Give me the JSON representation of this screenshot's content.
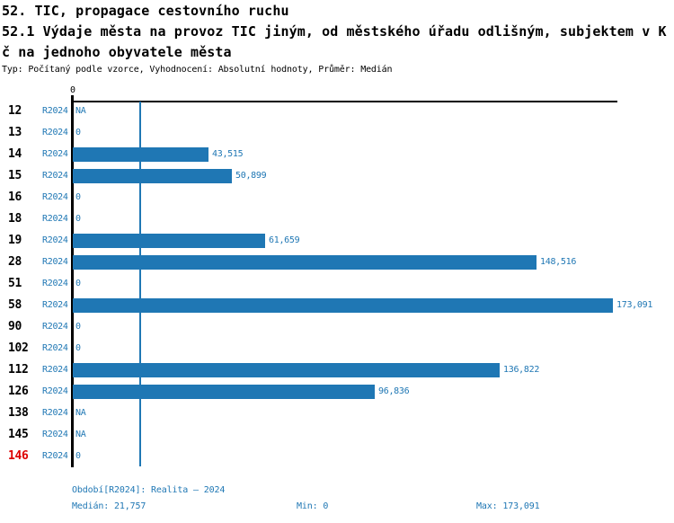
{
  "header": {
    "title_line1": "52. TIC, propagace cestovního ruchu",
    "title_line2": "52.1 Výdaje města na provoz TIC jiným, od městského úřadu odlišným, subjektem v K",
    "title_line3": "č na jednoho obyvatele města",
    "subtitle": "Typ: Počítaný podle vzorce, Vyhodnocení: Absolutní hodnoty, Průměr: Medián"
  },
  "chart_data": {
    "type": "bar",
    "orientation": "horizontal",
    "title": "52.1 Výdaje města na provoz TIC jiným, od městského úřadu odlišným, subjektem v Kč na jednoho obyvatele města",
    "series_label": "R2024",
    "categories": [
      "12",
      "13",
      "14",
      "15",
      "16",
      "18",
      "19",
      "28",
      "51",
      "58",
      "90",
      "102",
      "112",
      "126",
      "138",
      "145",
      "146"
    ],
    "values": [
      null,
      0,
      43515,
      50899,
      0,
      0,
      61659,
      148516,
      0,
      173091,
      0,
      0,
      136822,
      96836,
      null,
      null,
      0
    ],
    "value_labels": [
      "NA",
      "0",
      "43,515",
      "50,899",
      "0",
      "0",
      "61,659",
      "148,516",
      "0",
      "173,091",
      "0",
      "0",
      "136,822",
      "96,836",
      "NA",
      "NA",
      "0"
    ],
    "highlighted_category": "146",
    "axis_tick_label": "0",
    "xlim": [
      0,
      192640
    ],
    "median_value": 21757,
    "bar_color": "#1f77b4",
    "highlight_color": "#dd0000",
    "grid": false,
    "legend_position": "none"
  },
  "footer": {
    "period": "Období[R2024]: Realita – 2024",
    "median": "Medián: 21,757",
    "min": "Min: 0",
    "max": "Max: 173,091"
  }
}
